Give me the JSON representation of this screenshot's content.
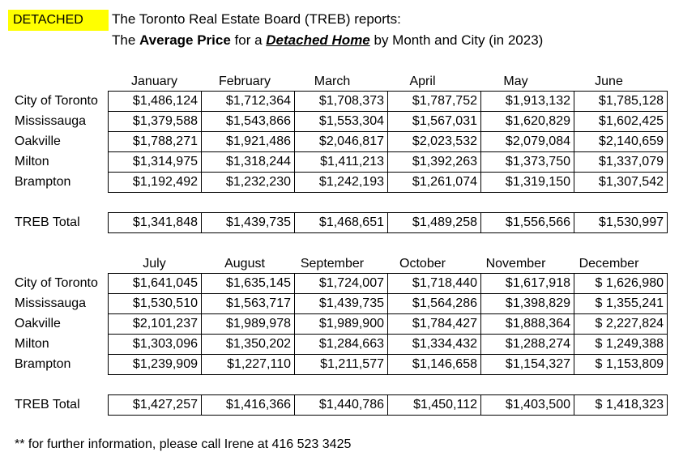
{
  "badge": "DETACHED",
  "header": {
    "line1": "The Toronto Real Estate Board (TREB) reports:",
    "line2_prefix": "The ",
    "line2_bold": "Average Price",
    "line2_mid": " for a ",
    "line2_bold_italic": "Detached Home",
    "line2_suffix": "  by Month and City (in 2023)"
  },
  "cities": [
    "City of Toronto",
    "Mississauga",
    "Oakville",
    "Milton",
    "Brampton"
  ],
  "total_label": "TREB Total",
  "part1": {
    "months": [
      "January",
      "February",
      "March",
      "April",
      "May",
      "June"
    ],
    "rows": [
      [
        "$1,486,124",
        "$1,712,364",
        "$1,708,373",
        "$1,787,752",
        "$1,913,132",
        "$1,785,128"
      ],
      [
        "$1,379,588",
        "$1,543,866",
        "$1,553,304",
        "$1,567,031",
        "$1,620,829",
        "$1,602,425"
      ],
      [
        "$1,788,271",
        "$1,921,486",
        "$2,046,817",
        "$2,023,532",
        "$2,079,084",
        "$2,140,659"
      ],
      [
        "$1,314,975",
        "$1,318,244",
        "$1,411,213",
        "$1,392,263",
        "$1,373,750",
        "$1,337,079"
      ],
      [
        "$1,192,492",
        "$1,232,230",
        "$1,242,193",
        "$1,261,074",
        "$1,319,150",
        "$1,307,542"
      ]
    ],
    "total": [
      "$1,341,848",
      "$1,439,735",
      "$1,468,651",
      "$1,489,258",
      "$1,556,566",
      "$1,530,997"
    ]
  },
  "part2": {
    "months": [
      "July",
      "August",
      "September",
      "October",
      "November",
      "December"
    ],
    "rows": [
      [
        "$1,641,045",
        "$1,635,145",
        "$1,724,007",
        "$1,718,440",
        "$1,617,918",
        "$ 1,626,980"
      ],
      [
        "$1,530,510",
        "$1,563,717",
        "$1,439,735",
        "$1,564,286",
        "$1,398,829",
        "$ 1,355,241"
      ],
      [
        "$2,101,237",
        "$1,989,978",
        "$1,989,900",
        "$1,784,427",
        "$1,888,364",
        "$ 2,227,824"
      ],
      [
        "$1,303,096",
        "$1,350,202",
        "$1,284,663",
        "$1,334,432",
        "$1,288,274",
        "$ 1,249,388"
      ],
      [
        "$1,239,909",
        "$1,227,110",
        "$1,211,577",
        "$1,146,658",
        "$1,154,327",
        "$ 1,153,809"
      ]
    ],
    "total": [
      "$1,427,257",
      "$1,416,366",
      "$1,440,786",
      "$1,450,112",
      "$1,403,500",
      "$ 1,418,323"
    ]
  },
  "footer": "** for further information, please call Irene at 416 523 3425"
}
